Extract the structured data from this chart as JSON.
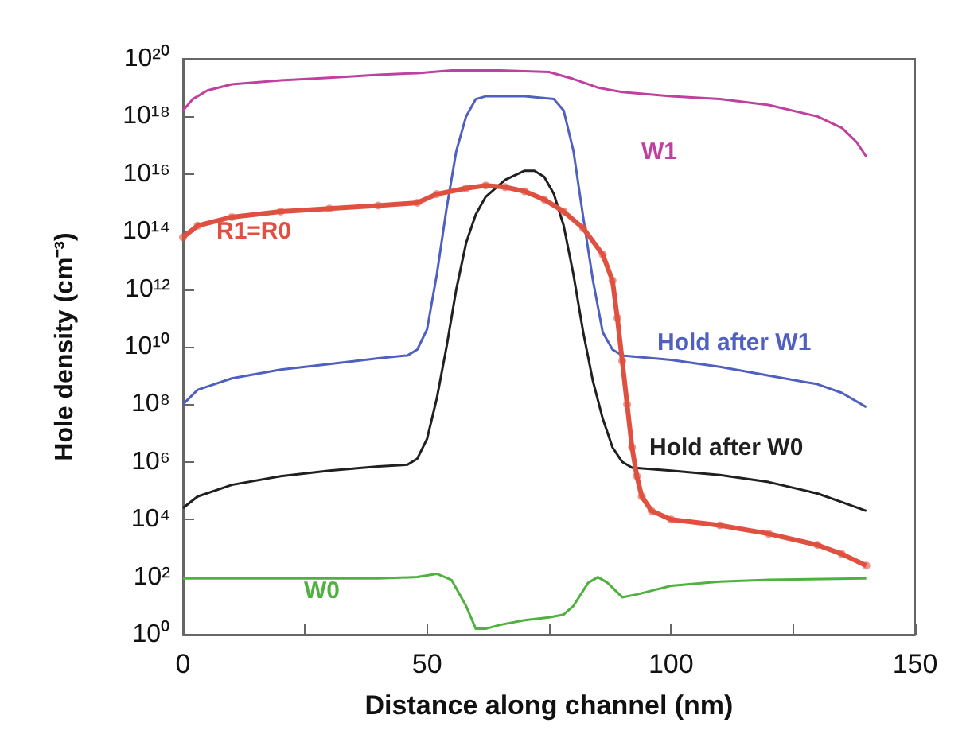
{
  "chart_data": {
    "type": "line",
    "xlabel": "Distance along channel (nm)",
    "ylabel": "Hole density (cm⁻³)",
    "log": "y",
    "grid": false,
    "legend": false,
    "marker": "none",
    "line_style": "solid",
    "xlim": [
      0,
      150
    ],
    "xticks": [
      0,
      {
        "value": 25,
        "label": null
      },
      50,
      {
        "value": 75,
        "label": null
      },
      100,
      {
        "value": 125,
        "label": null
      },
      150
    ],
    "ylim": [
      1,
      1e+20
    ],
    "yticks": [
      {
        "value": 1,
        "label": "10⁰"
      },
      {
        "value": 100.0,
        "label": "10²"
      },
      {
        "value": 10000.0,
        "label": "10⁴"
      },
      {
        "value": 1000000.0,
        "label": "10⁶"
      },
      {
        "value": 100000000.0,
        "label": "10⁸"
      },
      {
        "value": 10000000000.0,
        "label": "10¹⁰"
      },
      {
        "value": 1000000000000.0,
        "label": "10¹²"
      },
      {
        "value": 100000000000000.0,
        "label": "10¹⁴"
      },
      {
        "value": 1e+16,
        "label": "10¹⁶"
      },
      {
        "value": 1e+18,
        "label": "10¹⁸"
      },
      {
        "value": 1e+20,
        "label": "10²⁰"
      }
    ],
    "series": [
      {
        "name": "W1",
        "color": "#c040a0",
        "x": [
          0,
          2,
          5,
          10,
          20,
          30,
          40,
          48,
          55,
          65,
          75,
          80,
          85,
          90,
          100,
          110,
          120,
          130,
          135,
          138,
          140
        ],
        "values": [
          1.6e+18,
          4e+18,
          8e+18,
          1.3e+19,
          1.8e+19,
          2.2e+19,
          2.8e+19,
          3.2e+19,
          4e+19,
          4e+19,
          3.5e+19,
          2e+19,
          1e+19,
          7e+18,
          5e+18,
          4e+18,
          2.5e+18,
          1e+18,
          4e+17,
          1.3e+17,
          4e+16
        ]
      },
      {
        "name": "Hold after W1",
        "color": "#5060c0",
        "x": [
          0,
          3,
          10,
          20,
          30,
          40,
          46,
          48,
          50,
          52,
          54,
          56,
          58,
          60,
          62,
          70,
          76,
          78,
          80,
          82,
          84,
          86,
          88,
          90,
          100,
          110,
          120,
          130,
          135,
          140
        ],
        "values": [
          100000000.0,
          320000000.0,
          800000000.0,
          1600000000.0,
          2500000000.0,
          4000000000.0,
          5000000000.0,
          8000000000.0,
          40000000000.0,
          3200000000000.0,
          630000000000000.0,
          6.3e+16,
          1e+18,
          4e+18,
          5e+18,
          5e+18,
          4e+18,
          1.6e+18,
          6.3e+16,
          320000000000000.0,
          2000000000000.0,
          32000000000.0,
          8000000000.0,
          5000000000.0,
          3500000000.0,
          2000000000.0,
          1000000000.0,
          500000000.0,
          250000000.0,
          80000000.0
        ]
      },
      {
        "name": "Hold after W0",
        "color": "#202020",
        "x": [
          0,
          3,
          10,
          20,
          30,
          40,
          46,
          48,
          50,
          52,
          54,
          56,
          58,
          60,
          62,
          66,
          70,
          72,
          74,
          76,
          78,
          80,
          82,
          84,
          86,
          88,
          90,
          92,
          100,
          110,
          120,
          130,
          135,
          140
        ],
        "values": [
          25000.0,
          63000.0,
          160000.0,
          320000.0,
          500000.0,
          700000.0,
          800000.0,
          1300000.0,
          6300000.0,
          160000000.0,
          10000000000.0,
          1000000000000.0,
          40000000000000.0,
          400000000000000.0,
          1600000000000000.0,
          6300000000000000.0,
          1.3e+16,
          1.3e+16,
          8000000000000000.0,
          2000000000000000.0,
          160000000000000.0,
          3200000000000.0,
          32000000000.0,
          630000000.0,
          32000000.0,
          3200000.0,
          1000000.0,
          630000.0,
          500000.0,
          350000.0,
          200000.0,
          80000.0,
          40000.0,
          20000.0
        ]
      },
      {
        "name": "R1=R0",
        "color": "#e05040",
        "marker": "circle",
        "x": [
          0,
          3,
          10,
          20,
          30,
          40,
          48,
          52,
          58,
          62,
          66,
          70,
          74,
          78,
          82,
          86,
          88,
          89,
          90,
          91,
          92,
          93,
          94,
          96,
          100,
          110,
          120,
          130,
          135,
          140
        ],
        "values": [
          63000000000000.0,
          160000000000000.0,
          320000000000000.0,
          500000000000000.0,
          630000000000000.0,
          800000000000000.0,
          1000000000000000.0,
          2000000000000000.0,
          3200000000000000.0,
          4000000000000000.0,
          3500000000000000.0,
          2500000000000000.0,
          1300000000000000.0,
          500000000000000.0,
          130000000000000.0,
          16000000000000.0,
          2000000000000.0,
          100000000000.0,
          3200000000.0,
          100000000.0,
          3200000.0,
          320000.0,
          63000.0,
          20000.0,
          10000.0,
          6300.0,
          3200.0,
          1300.0,
          630.0,
          250.0
        ]
      },
      {
        "name": "W0",
        "color": "#50b040",
        "x": [
          0,
          20,
          40,
          48,
          52,
          55,
          58,
          60,
          62,
          65,
          70,
          75,
          78,
          80,
          83,
          85,
          87,
          90,
          93,
          100,
          110,
          120,
          140
        ],
        "values": [
          90,
          90,
          90,
          100,
          130,
          80,
          10,
          1.6,
          1.6,
          2.2,
          3.2,
          4,
          5,
          10,
          63,
          100,
          63,
          20,
          25,
          50,
          70,
          80,
          90
        ]
      }
    ]
  }
}
